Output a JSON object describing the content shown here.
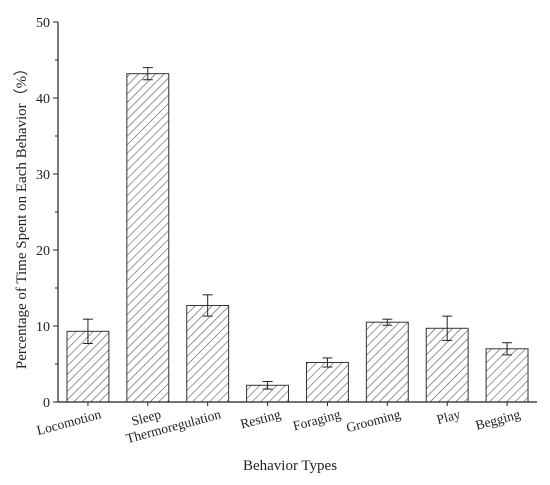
{
  "chart_data": {
    "type": "bar",
    "title": "",
    "xlabel": "Behavior Types",
    "ylabel": "Percentage of Time Spent on Each Behavior（%）",
    "categories": [
      "Locomotion",
      "Sleep",
      "Thermoregulation",
      "Resting",
      "Foraging",
      "Grooming",
      "Play",
      "Begging"
    ],
    "values": [
      9.3,
      43.2,
      12.7,
      2.2,
      5.2,
      10.5,
      9.7,
      7.0
    ],
    "errors": [
      1.6,
      0.8,
      1.4,
      0.5,
      0.6,
      0.4,
      1.6,
      0.8
    ],
    "ylim": [
      0,
      50
    ],
    "yticks": [
      0,
      10,
      20,
      30,
      40,
      50
    ],
    "grid": false,
    "legend": "none",
    "bar_fill": "hatched",
    "colors": {
      "bar_stroke": "#333333",
      "hatch": "#555555",
      "axis": "#222222"
    }
  }
}
